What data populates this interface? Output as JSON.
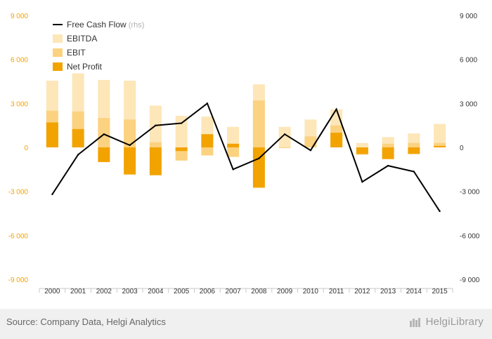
{
  "chart_data": {
    "type": "bar",
    "categories": [
      "2000",
      "2001",
      "2002",
      "2003",
      "2004",
      "2005",
      "2006",
      "2007",
      "2008",
      "2009",
      "2010",
      "2011",
      "2012",
      "2013",
      "2014",
      "2015"
    ],
    "series": [
      {
        "name": "EBITDA",
        "kind": "bar",
        "axis": "left",
        "color": "#fde6b8",
        "values": [
          4550,
          5050,
          4600,
          4550,
          2850,
          2150,
          2100,
          1400,
          4300,
          1400,
          1900,
          2600,
          300,
          700,
          950,
          1600
        ]
      },
      {
        "name": "EBIT",
        "kind": "bar",
        "axis": "left",
        "color": "#fbd280",
        "values": [
          2500,
          2450,
          2000,
          1900,
          350,
          -900,
          -550,
          -650,
          3200,
          -50,
          750,
          1500,
          -500,
          250,
          300,
          300
        ]
      },
      {
        "name": "Net Profit",
        "kind": "bar",
        "axis": "left",
        "color": "#f2a300",
        "values": [
          1700,
          1250,
          -1000,
          -1850,
          -1900,
          -250,
          900,
          250,
          -2750,
          0,
          0,
          1000,
          -450,
          -800,
          -450,
          100
        ]
      },
      {
        "name": "Free Cash Flow",
        "name_suffix": "(rhs)",
        "kind": "line",
        "axis": "right",
        "color": "#000000",
        "values": [
          -3200,
          -500,
          900,
          150,
          1500,
          1650,
          3000,
          -1500,
          -750,
          900,
          -200,
          2600,
          -2350,
          -1250,
          -1650,
          -4350
        ]
      }
    ],
    "ylim": [
      -9000,
      9000
    ],
    "y_ticks": [
      -9000,
      -6000,
      -3000,
      0,
      3000,
      6000,
      9000
    ],
    "y_tick_labels": [
      "-9 000",
      "-6 000",
      "-3 000",
      "0",
      "3 000",
      "6 000",
      "9 000"
    ],
    "y2lim": [
      -9000,
      9000
    ],
    "legend": "top-left",
    "grid": false
  },
  "footer": {
    "source": "Source: Company Data, Helgi Analytics",
    "brand": "HelgiLibrary"
  }
}
